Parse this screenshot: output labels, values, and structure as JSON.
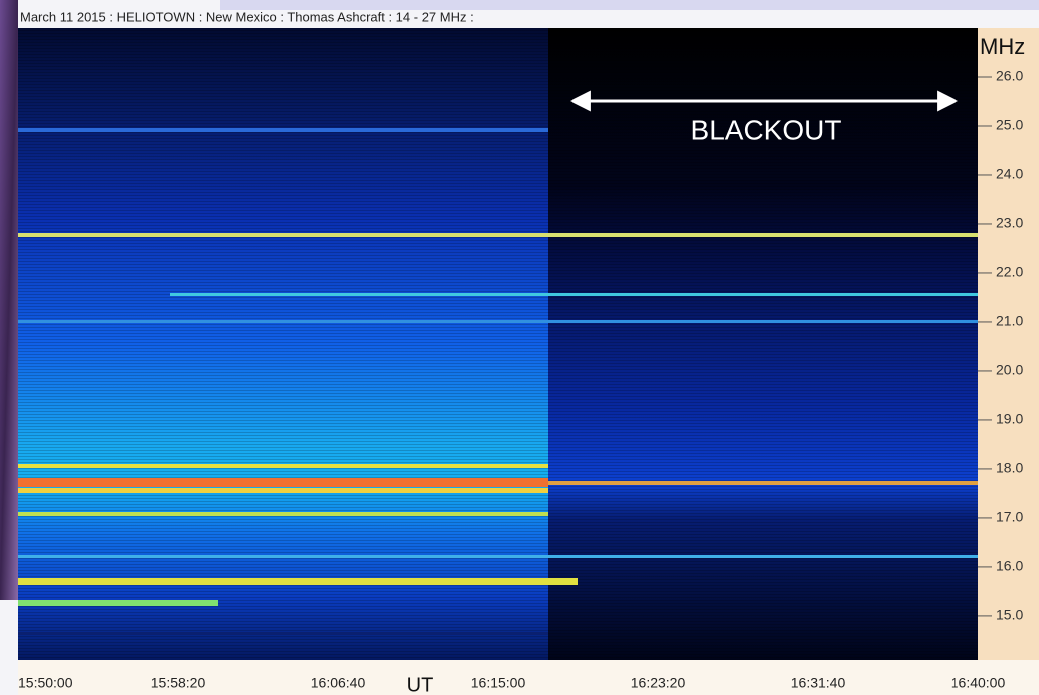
{
  "chart_data": {
    "type": "spectrogram",
    "title": "March 11 2015 : HELIOTOWN : New Mexico : Thomas Ashcraft : 14 - 27 MHz :",
    "annotation": "BLACKOUT",
    "y_label": "MHz",
    "x_label": "UT",
    "x_tick_labels": [
      "15:50:00",
      "15:58:20",
      "16:06:40",
      "16:15:00",
      "16:23:20",
      "16:31:40",
      "16:40:00"
    ],
    "ylim": [
      14.1,
      27.0
    ],
    "yticks": [
      {
        "value": 15,
        "label": "15.0"
      },
      {
        "value": 16,
        "label": "16.0"
      },
      {
        "value": 17,
        "label": "17.0"
      },
      {
        "value": 18,
        "label": "18.0"
      },
      {
        "value": 19,
        "label": "19.0"
      },
      {
        "value": 20,
        "label": "20.0"
      },
      {
        "value": 21,
        "label": "21.0"
      },
      {
        "value": 22,
        "label": "22.0"
      },
      {
        "value": 23,
        "label": "23.0"
      },
      {
        "value": 24,
        "label": "24.0"
      },
      {
        "value": 25,
        "label": "25.0"
      },
      {
        "value": 26,
        "label": "26.0"
      }
    ]
  }
}
